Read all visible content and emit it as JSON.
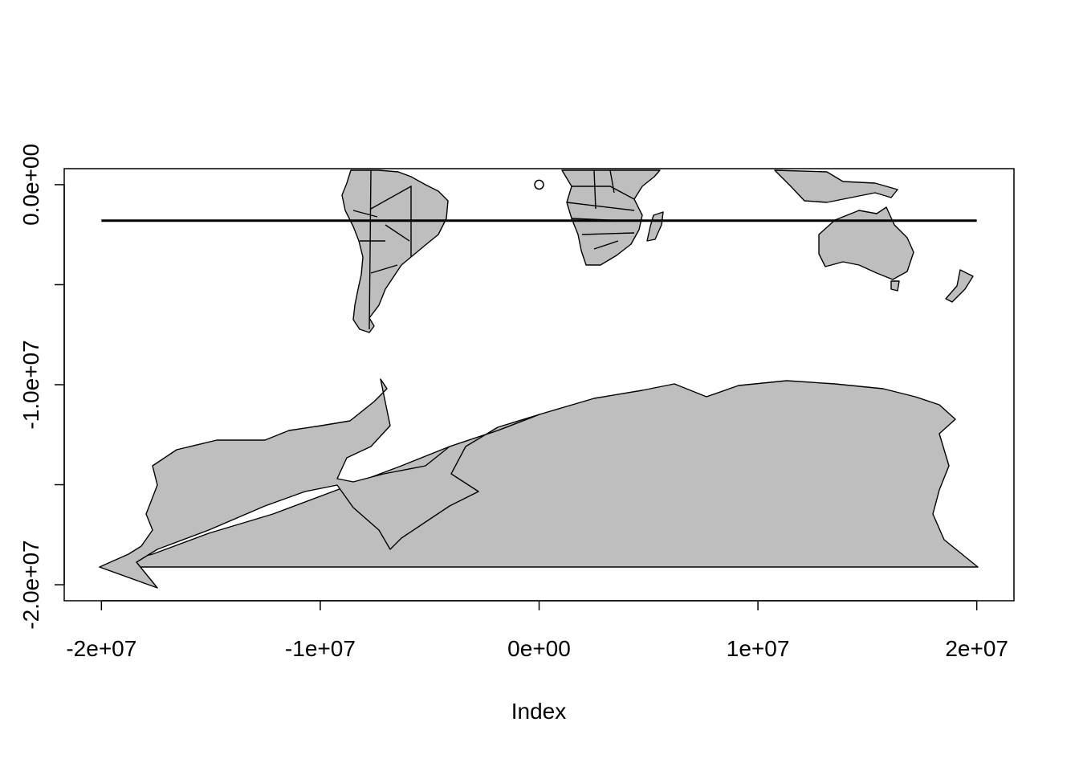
{
  "chart_data": {
    "type": "scatter",
    "title": "",
    "xlabel": "Index",
    "ylabel": "",
    "xlim": [
      -21700000,
      21700000
    ],
    "ylim": [
      -20800000,
      800000
    ],
    "x_ticks": [
      {
        "value": -20000000,
        "label": "-2e+07"
      },
      {
        "value": -10000000,
        "label": "-1e+07"
      },
      {
        "value": 0,
        "label": "0e+00"
      },
      {
        "value": 10000000,
        "label": "1e+07"
      },
      {
        "value": 20000000,
        "label": "2e+07"
      }
    ],
    "y_ticks": [
      {
        "value": 0,
        "label": "0.0e+00"
      },
      {
        "value": -5000000,
        "label": ""
      },
      {
        "value": -10000000,
        "label": "-1.0e+07"
      },
      {
        "value": -15000000,
        "label": ""
      },
      {
        "value": -20000000,
        "label": "-2.0e+07"
      }
    ],
    "series": [
      {
        "type": "point",
        "points": [
          [
            0,
            0
          ]
        ]
      },
      {
        "type": "line",
        "points": [
          [
            -20000000,
            -1800000
          ],
          [
            20000000,
            -1800000
          ]
        ]
      }
    ],
    "colors": {
      "land_fill": "#bebebe",
      "outline": "#000000",
      "background": "#ffffff"
    },
    "grid": false,
    "legend": "none"
  }
}
